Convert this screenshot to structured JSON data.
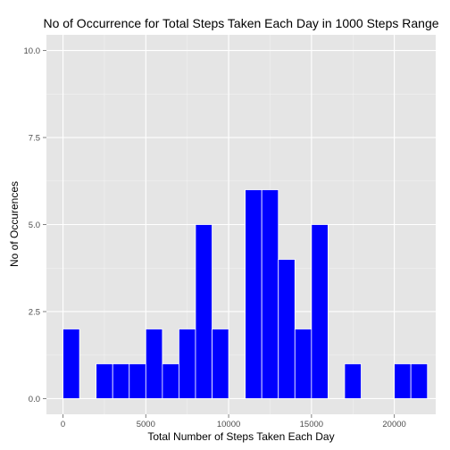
{
  "chart_data": {
    "type": "bar",
    "title": "No of Occurrence for Total Steps Taken Each Day in 1000 Steps Range",
    "xlabel": "Total Number of Steps Taken Each Day",
    "ylabel": "No of Occurences",
    "xlim": [
      -1000,
      22500
    ],
    "ylim": [
      -0.45,
      10.45
    ],
    "x_ticks": [
      0,
      5000,
      10000,
      15000,
      20000
    ],
    "x_tick_labels": [
      "0",
      "5000",
      "10000",
      "15000",
      "20000"
    ],
    "y_ticks": [
      0,
      2.5,
      5,
      7.5,
      10
    ],
    "y_tick_labels": [
      "0.0",
      "2.5",
      "5.0",
      "7.5",
      "10.0"
    ],
    "binwidth": 1000,
    "bins": [
      {
        "x": 500,
        "count": 2
      },
      {
        "x": 1500,
        "count": 0
      },
      {
        "x": 2500,
        "count": 1
      },
      {
        "x": 3500,
        "count": 1
      },
      {
        "x": 4500,
        "count": 1
      },
      {
        "x": 5500,
        "count": 2
      },
      {
        "x": 6500,
        "count": 1
      },
      {
        "x": 7500,
        "count": 2
      },
      {
        "x": 8500,
        "count": 5
      },
      {
        "x": 9500,
        "count": 2
      },
      {
        "x": 10500,
        "count": 0
      },
      {
        "x": 11500,
        "count": 6
      },
      {
        "x": 12500,
        "count": 6
      },
      {
        "x": 13500,
        "count": 4
      },
      {
        "x": 14500,
        "count": 2
      },
      {
        "x": 15500,
        "count": 5
      },
      {
        "x": 16500,
        "count": 0
      },
      {
        "x": 17500,
        "count": 1
      },
      {
        "x": 18500,
        "count": 0
      },
      {
        "x": 19500,
        "count": 0
      },
      {
        "x": 20500,
        "count": 1
      },
      {
        "x": 21500,
        "count": 1
      }
    ],
    "bar_color": "#0000ff",
    "bar_outline": "#ffffff",
    "panel_background": "#e5e5e5",
    "grid_color": "#ffffff",
    "grid": true,
    "legend": "none"
  }
}
